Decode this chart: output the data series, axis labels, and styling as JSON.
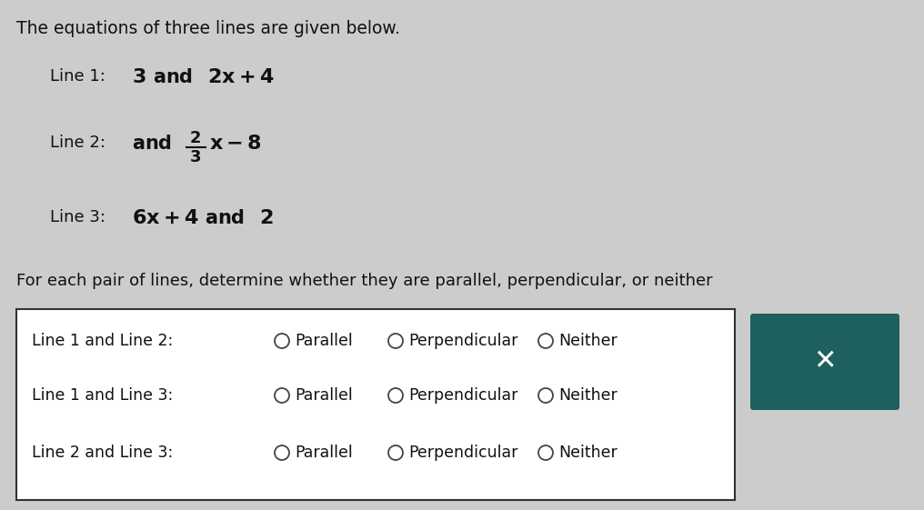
{
  "background_color": "#cccccc",
  "title_text": "The equations of three lines are given below.",
  "question_text": "For each pair of lines, determine whether they are parallel, perpendicular, or neither",
  "row1_label": "Line 1 and Line 2:",
  "row2_label": "Line 1 and Line 3:",
  "row3_label": "Line 2 and Line 3:",
  "options": [
    "Parallel",
    "Perpendicular",
    "Neither"
  ],
  "box_bg": "#ffffff",
  "box_border": "#333333",
  "teal_box_bg": "#1e5f5f",
  "teal_x_color": "#ffffff",
  "text_color": "#111111",
  "circle_color": "#444444"
}
